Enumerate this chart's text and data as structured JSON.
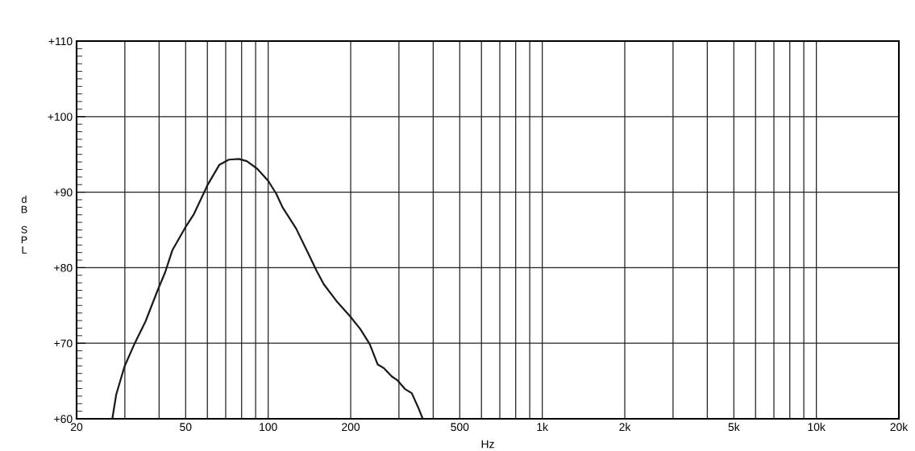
{
  "chart_data": {
    "type": "line",
    "xlabel": "Hz",
    "ylabel": "dB SPL",
    "log": "x",
    "grid": true,
    "legend": false,
    "xlim": [
      20,
      20000
    ],
    "ylim": [
      60,
      110
    ],
    "xticks": [
      20,
      {
        "value": 30,
        "label": null
      },
      {
        "value": 40,
        "label": null
      },
      50,
      {
        "value": 60,
        "label": null
      },
      {
        "value": 70,
        "label": null
      },
      {
        "value": 80,
        "label": null
      },
      {
        "value": 90,
        "label": null
      },
      100,
      200,
      {
        "value": 300,
        "label": null
      },
      {
        "value": 400,
        "label": null
      },
      500,
      {
        "value": 600,
        "label": null
      },
      {
        "value": 700,
        "label": null
      },
      {
        "value": 800,
        "label": null
      },
      {
        "value": 900,
        "label": null
      },
      {
        "value": 1000,
        "label": "1k"
      },
      {
        "value": 2000,
        "label": "2k"
      },
      {
        "value": 3000,
        "label": null
      },
      {
        "value": 4000,
        "label": null
      },
      {
        "value": 5000,
        "label": "5k"
      },
      {
        "value": 6000,
        "label": null
      },
      {
        "value": 7000,
        "label": null
      },
      {
        "value": 8000,
        "label": null
      },
      {
        "value": 9000,
        "label": null
      },
      {
        "value": 10000,
        "label": "10k"
      },
      {
        "value": 20000,
        "label": "20k"
      }
    ],
    "yticks": [
      {
        "value": 60,
        "label": "+60"
      },
      {
        "value": 70,
        "label": "+70"
      },
      {
        "value": 80,
        "label": "+80"
      },
      {
        "value": 90,
        "label": "+90"
      },
      {
        "value": 100,
        "label": "+100"
      },
      {
        "value": 110,
        "label": "+110"
      }
    ],
    "series": [
      {
        "color": "#1a1a1a",
        "x": [
          27.0,
          27.9,
          29.9,
          32.5,
          35.7,
          39.4,
          42.1,
          44.7,
          49.8,
          53.6,
          60.0,
          66.3,
          71.8,
          78.2,
          83.6,
          91.2,
          100,
          107,
          112.8,
          126.4,
          139.6,
          150.2,
          159.6,
          177.4,
          198.7,
          216.6,
          234.6,
          250.8,
          264.4,
          282.6,
          296.2,
          316.6,
          334,
          354.6,
          366.4
        ],
        "values": [
          60.0,
          63.2,
          66.9,
          69.9,
          72.9,
          76.9,
          79.4,
          82.3,
          85.3,
          87.1,
          90.9,
          93.6,
          94.3,
          94.4,
          94.1,
          93.1,
          91.5,
          89.8,
          88.0,
          85.2,
          82.0,
          79.6,
          77.8,
          75.6,
          73.6,
          71.9,
          69.9,
          67.2,
          66.7,
          65.6,
          65.1,
          63.9,
          63.4,
          61.3,
          60.0
        ]
      }
    ]
  }
}
